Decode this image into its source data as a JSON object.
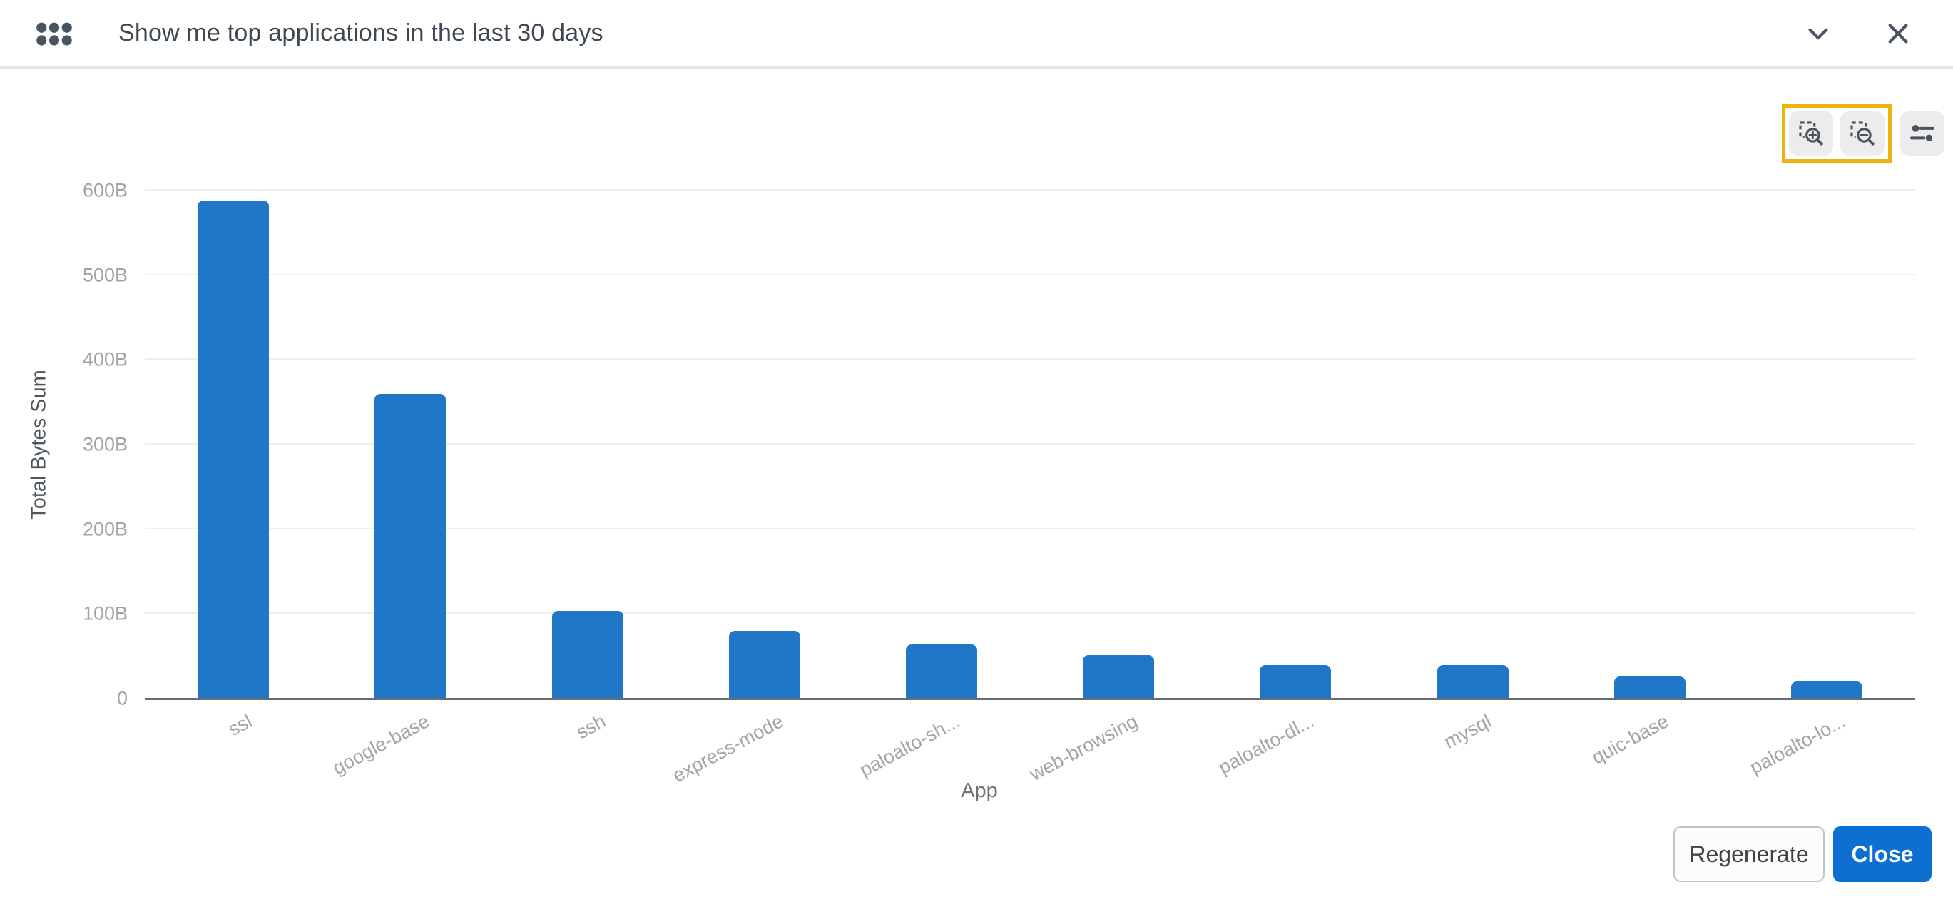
{
  "header": {
    "title": "Show me top applications in the last 30 days"
  },
  "toolbar": {
    "icons": [
      "marquee-zoom-in-icon",
      "marquee-zoom-out-icon",
      "chart-settings-icon"
    ]
  },
  "chart_data": {
    "type": "bar",
    "title": "",
    "categories": [
      "ssl",
      "google-base",
      "ssh",
      "express-mode",
      "paloalto-sh...",
      "web-browsing",
      "paloalto-dl...",
      "mysql",
      "quic-base",
      "paloalto-lo..."
    ],
    "values": [
      588,
      360,
      104,
      80,
      64,
      51,
      40,
      40,
      26,
      20
    ],
    "value_unit": "B",
    "xlabel": "App",
    "ylabel": "Total Bytes Sum",
    "ylim": [
      0,
      600
    ],
    "ytick_values": [
      0,
      100,
      200,
      300,
      400,
      500,
      600
    ],
    "ytick_labels": [
      "0",
      "100B",
      "200B",
      "300B",
      "400B",
      "500B",
      "600B"
    ],
    "grid": true,
    "legend": "none",
    "bar_color": "#2077c8"
  },
  "footer": {
    "regenerate_label": "Regenerate",
    "close_label": "Close"
  },
  "colors": {
    "bar_blue": "#2077c8",
    "close_button_blue": "#0c6fd1",
    "highlight_yellow": "#efb30e",
    "icon_slate": "#4a545e",
    "header_text": "#3d4852",
    "tick_gray": "#9ea3a8",
    "grid_line": "#edeff3",
    "axis_line": "#6a6d70",
    "toolbar_button_bg": "#ececec"
  }
}
